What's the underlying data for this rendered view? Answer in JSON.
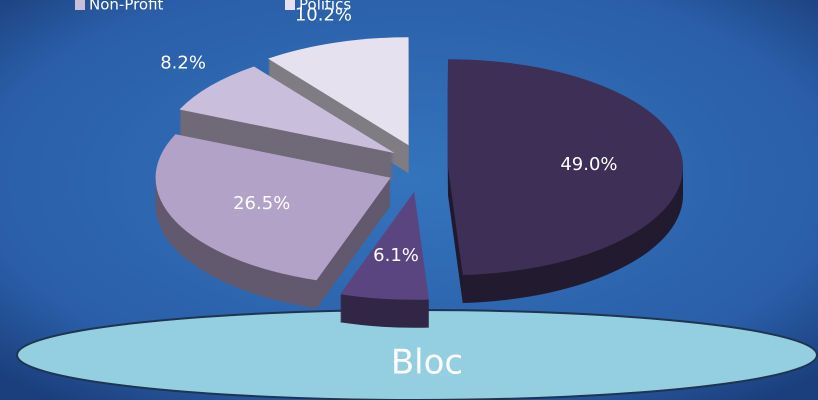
{
  "chart_data": {
    "type": "pie",
    "categories": [
      null,
      null,
      null,
      "Non-Profit",
      "Politics"
    ],
    "values": [
      49.0,
      6.1,
      26.5,
      8.2,
      10.2
    ],
    "value_labels": [
      "49.0%",
      "6.1%",
      "26.5%",
      "8.2%",
      "10.2%"
    ],
    "colors": [
      "#3d2f55",
      "#5a4580",
      "#b3a2c8",
      "#c9bedb",
      "#e6e1ee"
    ],
    "annotation": "Bloc",
    "legend": "top"
  }
}
